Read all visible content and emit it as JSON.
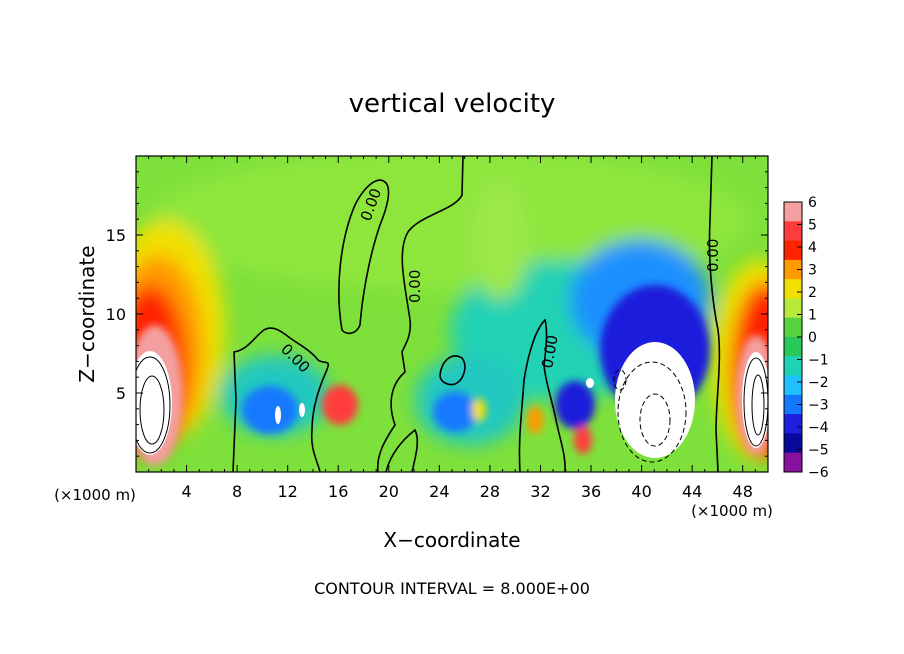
{
  "chart_data": {
    "type": "heatmap",
    "title": "vertical velocity",
    "xlabel": "X−coordinate",
    "ylabel": "Z−coordinate",
    "x_unit_left": "(×1000 m)",
    "x_unit_right": "(×1000 m)",
    "footer": "CONTOUR INTERVAL = 8.000E+00",
    "xlim": [
      0,
      50
    ],
    "ylim": [
      0,
      20
    ],
    "x_ticks": [
      4,
      8,
      12,
      16,
      20,
      24,
      28,
      32,
      36,
      40,
      44,
      48
    ],
    "y_ticks": [
      5,
      10,
      15
    ],
    "colorbar": {
      "ticks": [
        6,
        5,
        4,
        3,
        2,
        1,
        0,
        -1,
        -2,
        -3,
        -4,
        -5,
        -6
      ],
      "tick_labels": [
        "6",
        "5",
        "4",
        "3",
        "2",
        "1",
        "0",
        "−1",
        "−2",
        "−3",
        "−4",
        "−5",
        "−6"
      ],
      "range": [
        -6,
        6
      ],
      "colors_top_to_bottom": [
        "#f4a0a0",
        "#ff3c3c",
        "#ff2400",
        "#ff9a00",
        "#f0e000",
        "#b8e83a",
        "#55d23c",
        "#28c85a",
        "#20d2b4",
        "#1ec0ff",
        "#1478ff",
        "#1e1edc",
        "#0a0a9a",
        "#8a10a0"
      ]
    },
    "contour_labels": [
      "0.00",
      "0.00",
      "0.00",
      "0.00",
      "0.00",
      "0.00"
    ]
  }
}
